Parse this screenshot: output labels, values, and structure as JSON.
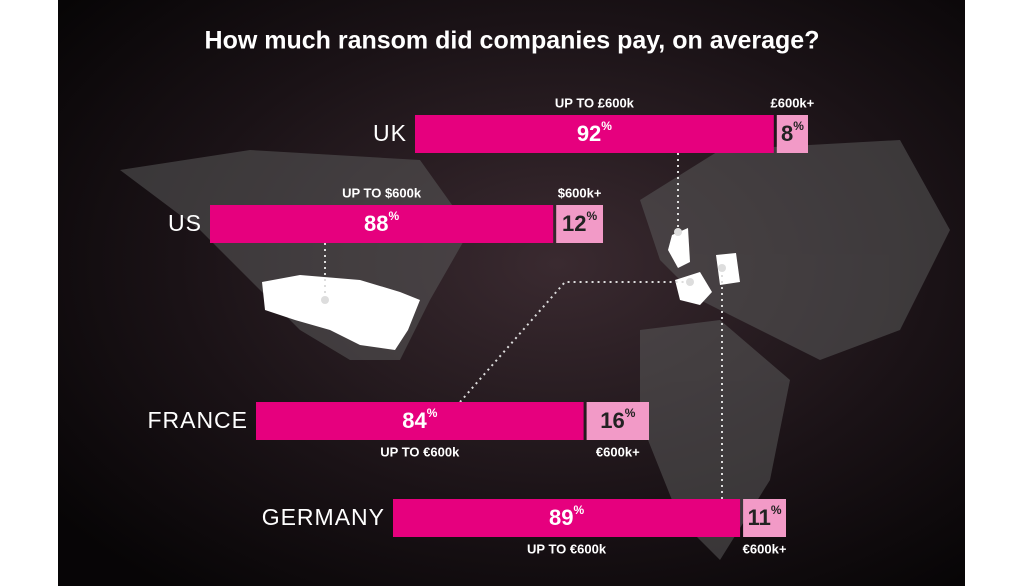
{
  "chart_data": {
    "type": "split-bar",
    "title": "How much ransom did companies pay, on average?",
    "unit": "%",
    "colors": [
      "#e6007e",
      "#f29ac7"
    ],
    "countries": [
      {
        "name": "UK",
        "segments": [
          {
            "label": "UP TO £600k",
            "value": 92
          },
          {
            "label": "£600k+",
            "value": 8
          }
        ]
      },
      {
        "name": "US",
        "segments": [
          {
            "label": "UP TO $600k",
            "value": 88
          },
          {
            "label": "$600k+",
            "value": 12
          }
        ]
      },
      {
        "name": "FRANCE",
        "segments": [
          {
            "label": "UP TO €600k",
            "value": 84
          },
          {
            "label": "€600k+",
            "value": 16
          }
        ]
      },
      {
        "name": "GERMANY",
        "segments": [
          {
            "label": "UP TO €600k",
            "value": 89
          },
          {
            "label": "€600k+",
            "value": 11
          }
        ]
      }
    ]
  }
}
